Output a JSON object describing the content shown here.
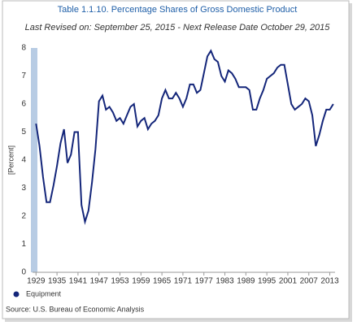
{
  "chart_data": {
    "type": "line",
    "title": "Table 1.1.10. Percentage Shares of Gross Domestic Product",
    "subtitle": "Last Revised on: September 25, 2015 - Next Release Date October 29, 2015",
    "y_label": "[Percent]",
    "source": "Source: U.S. Bureau of Economic Analysis",
    "x": [
      1929,
      1930,
      1931,
      1932,
      1933,
      1934,
      1935,
      1936,
      1937,
      1938,
      1939,
      1940,
      1941,
      1942,
      1943,
      1944,
      1945,
      1946,
      1947,
      1948,
      1949,
      1950,
      1951,
      1952,
      1953,
      1954,
      1955,
      1956,
      1957,
      1958,
      1959,
      1960,
      1961,
      1962,
      1963,
      1964,
      1965,
      1966,
      1967,
      1968,
      1969,
      1970,
      1971,
      1972,
      1973,
      1974,
      1975,
      1976,
      1977,
      1978,
      1979,
      1980,
      1981,
      1982,
      1983,
      1984,
      1985,
      1986,
      1987,
      1988,
      1989,
      1990,
      1991,
      1992,
      1993,
      1994,
      1995,
      1996,
      1997,
      1998,
      1999,
      2000,
      2001,
      2002,
      2003,
      2004,
      2005,
      2006,
      2007,
      2008,
      2009,
      2010,
      2011,
      2012,
      2013,
      2014
    ],
    "series": [
      {
        "name": "Equipment",
        "color": "#14267a",
        "values": [
          5.3,
          4.5,
          3.4,
          2.5,
          2.5,
          3.1,
          3.8,
          4.6,
          5.1,
          3.9,
          4.2,
          5.0,
          5.0,
          2.4,
          1.8,
          2.2,
          3.2,
          4.4,
          6.1,
          6.3,
          5.8,
          5.9,
          5.7,
          5.4,
          5.5,
          5.3,
          5.6,
          5.9,
          6.0,
          5.2,
          5.4,
          5.5,
          5.1,
          5.3,
          5.4,
          5.6,
          6.2,
          6.5,
          6.2,
          6.2,
          6.4,
          6.2,
          5.9,
          6.2,
          6.7,
          6.7,
          6.4,
          6.5,
          7.1,
          7.7,
          7.9,
          7.6,
          7.5,
          7.0,
          6.8,
          7.2,
          7.1,
          6.9,
          6.6,
          6.6,
          6.6,
          6.5,
          5.8,
          5.8,
          6.2,
          6.5,
          6.9,
          7.0,
          7.1,
          7.3,
          7.4,
          7.4,
          6.7,
          6.0,
          5.8,
          5.9,
          6.0,
          6.2,
          6.1,
          5.6,
          4.5,
          4.9,
          5.4,
          5.8,
          5.8,
          6.0
        ]
      }
    ],
    "xlim": [
      1928,
      2014.5
    ],
    "xticks": [
      1929,
      1935,
      1941,
      1947,
      1953,
      1959,
      1965,
      1971,
      1977,
      1983,
      1989,
      1995,
      2001,
      2007,
      2013
    ],
    "ylim": [
      0,
      8
    ],
    "yticks": [
      0,
      1,
      2,
      3,
      4,
      5,
      6,
      7,
      8
    ],
    "grid": false,
    "legend": "bottom-left"
  }
}
